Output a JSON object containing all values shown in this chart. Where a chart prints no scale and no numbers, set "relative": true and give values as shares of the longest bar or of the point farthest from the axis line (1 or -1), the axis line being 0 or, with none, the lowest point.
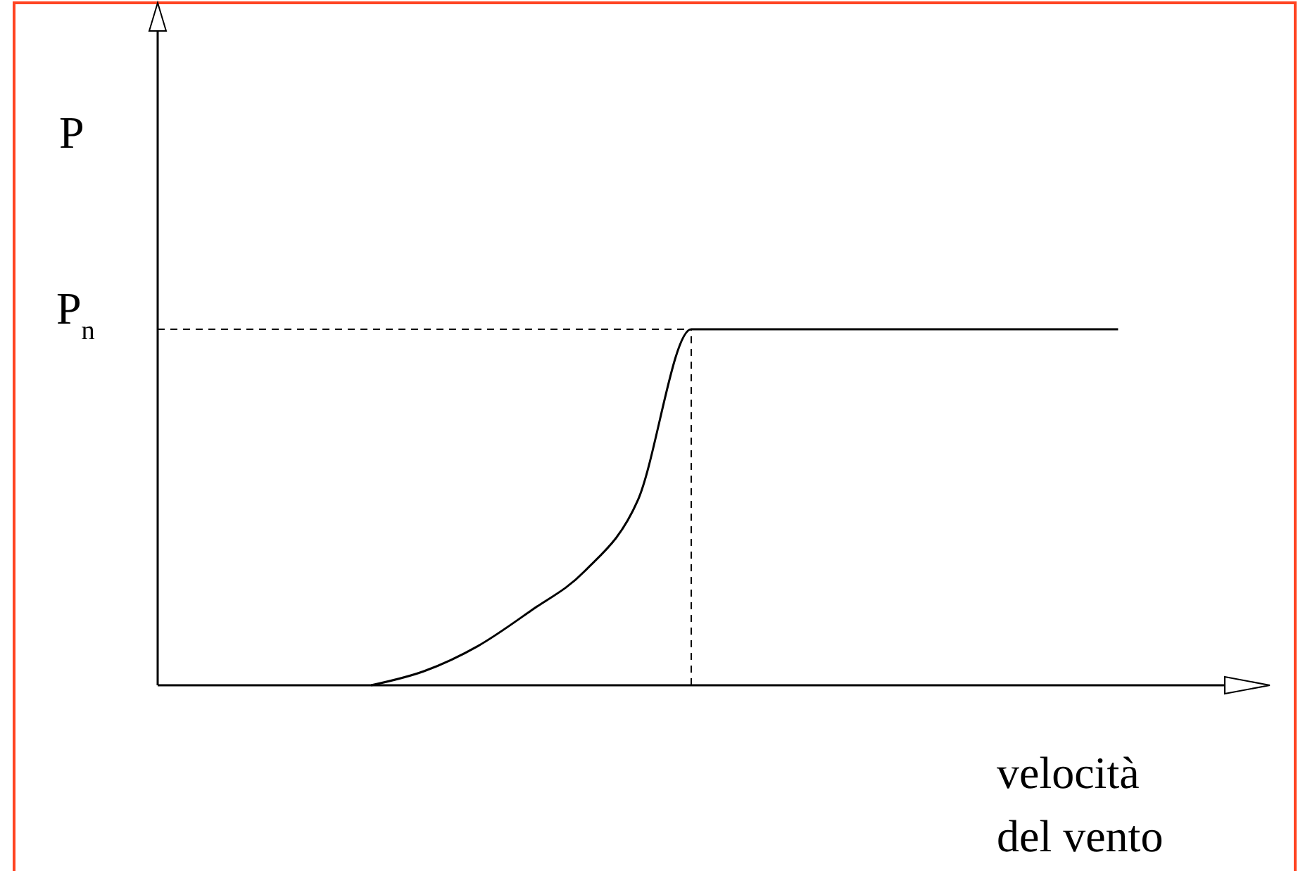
{
  "chart_data": {
    "type": "line",
    "relative": true,
    "xlabel": "velocità del vento",
    "ylabel": "P",
    "categories": [
      null,
      null,
      null,
      null,
      null,
      null,
      null,
      null,
      null,
      null,
      null,
      null,
      null,
      null,
      null,
      null,
      null,
      null,
      null,
      null,
      null
    ],
    "values": [
      null,
      null,
      null,
      null,
      0,
      0.04,
      0.11,
      0.21,
      0.32,
      0.52,
      1,
      1,
      1,
      1,
      1,
      1,
      1,
      1,
      1,
      null,
      null
    ],
    "color": "#000000",
    "ref_lines": [
      {
        "axis": "y",
        "value": 1,
        "label": "P$_{n}$",
        "line_style": "dashed"
      }
    ]
  }
}
